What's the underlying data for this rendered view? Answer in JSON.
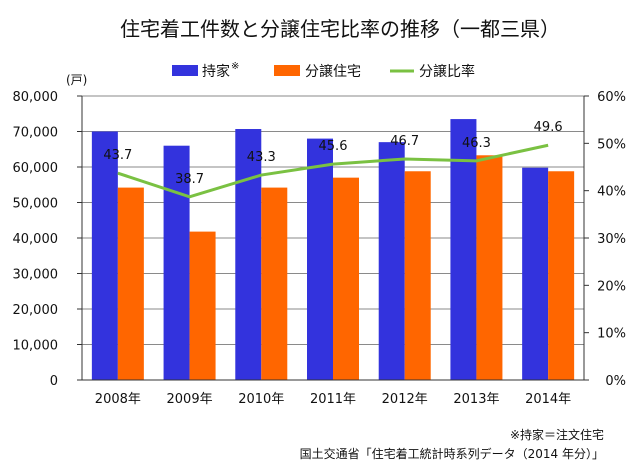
{
  "chart_data": {
    "type": "bar",
    "title": "住宅着工件数と分譲住宅比率の推移（一都三県）",
    "ylabel": "(戸)",
    "categories": [
      "2008年",
      "2009年",
      "2010年",
      "2011年",
      "2012年",
      "2013年",
      "2014年"
    ],
    "series": [
      {
        "name": "持家",
        "name_mark": "※",
        "kind": "bar",
        "axis": "left",
        "color": "#3333dd",
        "values": [
          70000,
          66000,
          70700,
          68000,
          67000,
          73500,
          59800
        ]
      },
      {
        "name": "分譲住宅",
        "kind": "bar",
        "axis": "left",
        "color": "#ff6600",
        "values": [
          54200,
          41800,
          54200,
          57000,
          58800,
          63300,
          58800
        ]
      },
      {
        "name": "分譲比率",
        "kind": "line",
        "axis": "right",
        "color": "#7ac142",
        "values": [
          43.7,
          38.7,
          43.3,
          45.6,
          46.7,
          46.3,
          49.6
        ],
        "labels": [
          "43.7",
          "38.7",
          "43.3",
          "45.6",
          "46.7",
          "46.3",
          "49.6"
        ]
      }
    ],
    "ylim": [
      0,
      80000
    ],
    "y2lim": [
      0,
      60
    ],
    "yticks": [
      "0",
      "10,000",
      "20,000",
      "30,000",
      "40,000",
      "50,000",
      "60,000",
      "70,000",
      "80,000"
    ],
    "y2ticks": [
      "0%",
      "10%",
      "20%",
      "30%",
      "40%",
      "50%",
      "60%"
    ],
    "grid": true,
    "legend": "top",
    "footnote": "※持家＝注文住宅",
    "source": "国土交通省「住宅着工統計時系列データ（2014 年分）」"
  }
}
